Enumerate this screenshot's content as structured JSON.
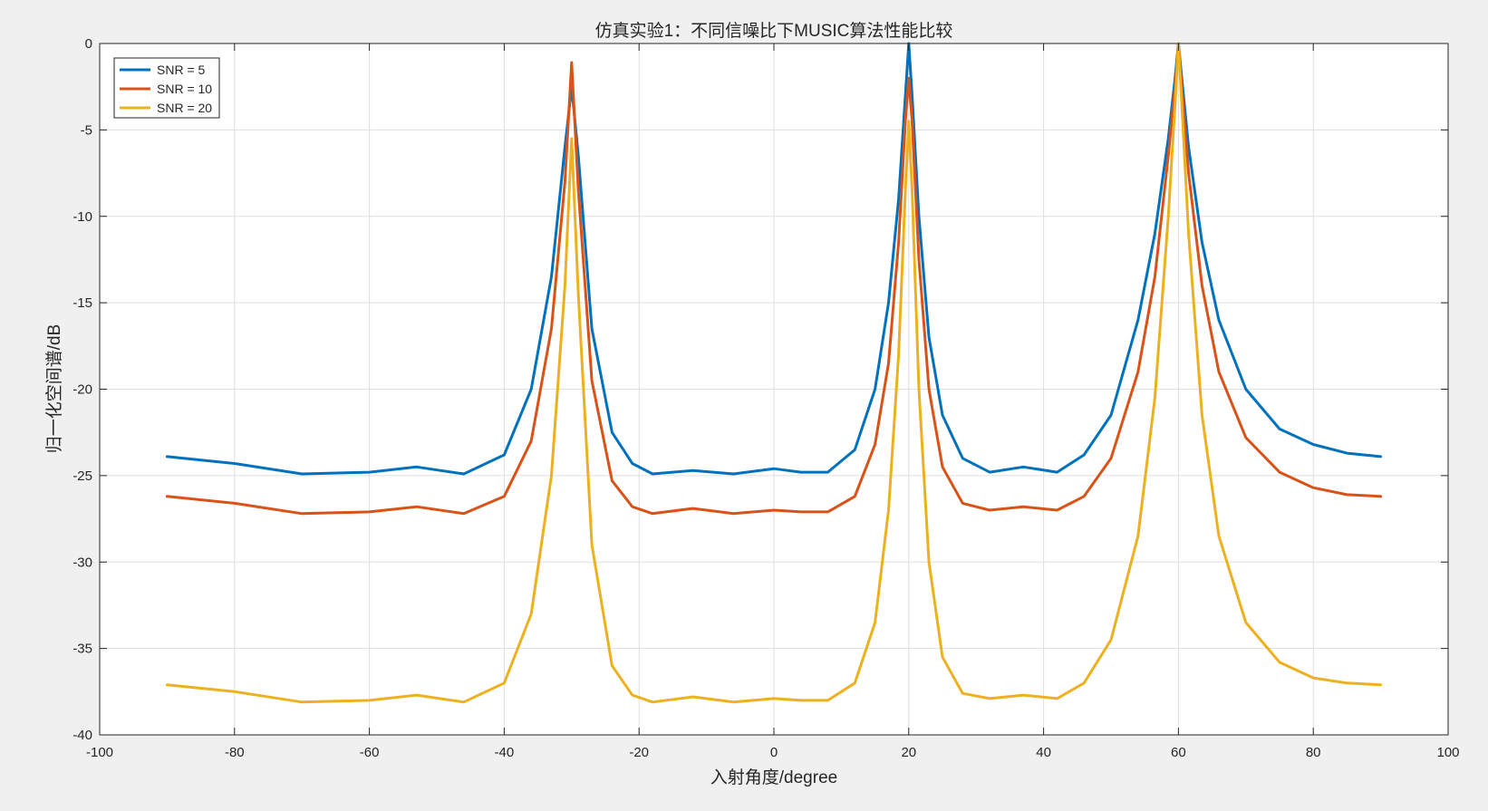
{
  "chart_data": {
    "type": "line",
    "title": "仿真实验1：不同信噪比下MUSIC算法性能比较",
    "xlabel": "入射角度/degree",
    "ylabel": "归一化空间谱/dB",
    "xlim": [
      -100,
      100
    ],
    "ylim": [
      -40,
      0
    ],
    "xticks": [
      -100,
      -80,
      -60,
      -40,
      -20,
      0,
      20,
      40,
      60,
      80,
      100
    ],
    "yticks": [
      0,
      -5,
      -10,
      -15,
      -20,
      -25,
      -30,
      -35,
      -40
    ],
    "xtick_labels": [
      "-100",
      "-80",
      "-60",
      "-40",
      "-20",
      "0",
      "20",
      "40",
      "60",
      "80",
      "100"
    ],
    "ytick_labels": [
      "0",
      "-5",
      "-10",
      "-15",
      "-20",
      "-25",
      "-30",
      "-35",
      "-40"
    ],
    "grid": true,
    "legend_position": "top-left",
    "series": [
      {
        "name": "SNR = 5",
        "color": "#0072bd",
        "x": [
          -90,
          -80,
          -70,
          -60,
          -53,
          -46,
          -40,
          -36,
          -33,
          -31,
          -30,
          -29,
          -27,
          -24,
          -21,
          -18,
          -12,
          -6,
          0,
          4,
          8,
          12,
          15,
          17,
          18.5,
          19.5,
          20,
          20.5,
          21.5,
          23,
          25,
          28,
          32,
          37,
          42,
          46,
          50,
          54,
          56.5,
          58.5,
          59.5,
          60,
          60.5,
          61.5,
          63.5,
          66,
          70,
          75,
          80,
          85,
          90
        ],
        "y": [
          -23.9,
          -24.3,
          -24.9,
          -24.8,
          -24.5,
          -24.9,
          -23.8,
          -20.0,
          -13.5,
          -6.0,
          -2.5,
          -6.5,
          -16.5,
          -22.5,
          -24.3,
          -24.9,
          -24.7,
          -24.9,
          -24.6,
          -24.8,
          -24.8,
          -23.5,
          -20.0,
          -15.0,
          -9.0,
          -3.0,
          0,
          -3.0,
          -10.0,
          -17.0,
          -21.5,
          -24.0,
          -24.8,
          -24.5,
          -24.8,
          -23.8,
          -21.5,
          -16.0,
          -11.0,
          -5.5,
          -2.0,
          0,
          -2.0,
          -6.0,
          -11.5,
          -16.0,
          -20.0,
          -22.3,
          -23.2,
          -23.7,
          -23.9
        ]
      },
      {
        "name": "SNR = 10",
        "color": "#d95319",
        "x": [
          -90,
          -80,
          -70,
          -60,
          -53,
          -46,
          -40,
          -36,
          -33,
          -31,
          -30,
          -29,
          -27,
          -24,
          -21,
          -18,
          -12,
          -6,
          0,
          4,
          8,
          12,
          15,
          17,
          18.5,
          19.5,
          20,
          20.5,
          21.5,
          23,
          25,
          28,
          32,
          37,
          42,
          46,
          50,
          54,
          56.5,
          58.5,
          59.5,
          60,
          60.5,
          61.5,
          63.5,
          66,
          70,
          75,
          80,
          85,
          90
        ],
        "y": [
          -26.2,
          -26.6,
          -27.2,
          -27.1,
          -26.8,
          -27.2,
          -26.2,
          -23.0,
          -16.5,
          -8.0,
          -1.1,
          -8.5,
          -19.5,
          -25.3,
          -26.8,
          -27.2,
          -26.9,
          -27.2,
          -27.0,
          -27.1,
          -27.1,
          -26.2,
          -23.2,
          -18.5,
          -11.5,
          -4.5,
          -2.0,
          -4.5,
          -12.5,
          -20.0,
          -24.5,
          -26.6,
          -27.0,
          -26.8,
          -27.0,
          -26.2,
          -24.0,
          -19.0,
          -13.5,
          -6.5,
          -2.5,
          0,
          -2.5,
          -7.5,
          -14.0,
          -19.0,
          -22.8,
          -24.8,
          -25.7,
          -26.1,
          -26.2
        ]
      },
      {
        "name": "SNR = 20",
        "color": "#edb120",
        "x": [
          -90,
          -80,
          -70,
          -60,
          -53,
          -46,
          -40,
          -36,
          -33,
          -31,
          -30,
          -29,
          -27,
          -24,
          -21,
          -18,
          -12,
          -6,
          0,
          4,
          8,
          12,
          15,
          17,
          18.5,
          19.5,
          20,
          20.5,
          21.5,
          23,
          25,
          28,
          32,
          37,
          42,
          46,
          50,
          54,
          56.5,
          58.5,
          59.5,
          60,
          60.5,
          61.5,
          63.5,
          66,
          70,
          75,
          80,
          85,
          90
        ],
        "y": [
          -37.1,
          -37.5,
          -38.1,
          -38.0,
          -37.7,
          -38.1,
          -37.0,
          -33.0,
          -25.0,
          -14.0,
          -5.5,
          -14.5,
          -29.0,
          -36.0,
          -37.7,
          -38.1,
          -37.8,
          -38.1,
          -37.9,
          -38.0,
          -38.0,
          -37.0,
          -33.5,
          -27.0,
          -18.0,
          -8.5,
          -4.5,
          -8.5,
          -20.0,
          -30.0,
          -35.5,
          -37.6,
          -37.9,
          -37.7,
          -37.9,
          -37.0,
          -34.5,
          -28.5,
          -20.5,
          -10.0,
          -3.5,
          0,
          -3.5,
          -11.0,
          -21.5,
          -28.5,
          -33.5,
          -35.8,
          -36.7,
          -37.0,
          -37.1
        ]
      }
    ]
  }
}
